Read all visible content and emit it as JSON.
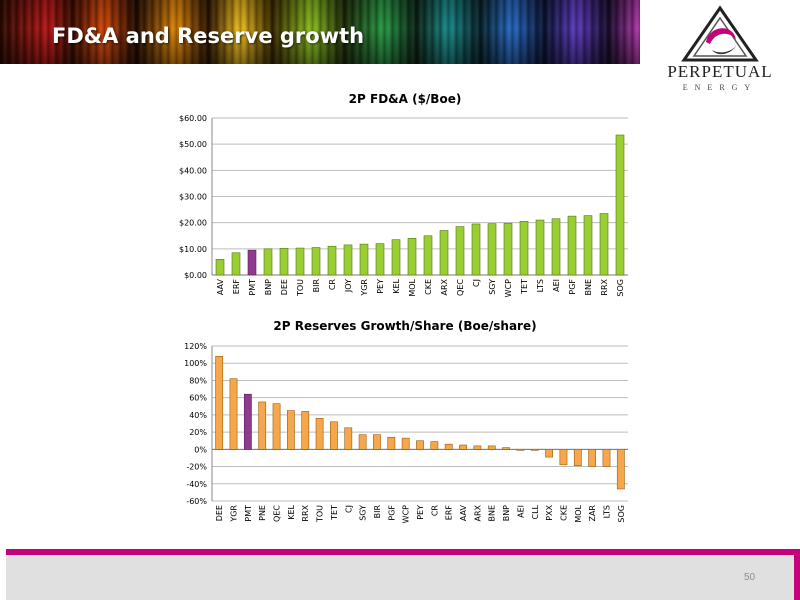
{
  "slide": {
    "title": "FD&A and Reserve growth",
    "page_number": "50"
  },
  "logo": {
    "name": "PERPETUAL",
    "sub": "ENERGY"
  },
  "colors": {
    "bar_default_1": "#9acd32",
    "bar_default_2": "#f7a74b",
    "bar_highlight": "#8e3a8e",
    "footer_accent": "#c4007a"
  },
  "chart_data": [
    {
      "type": "bar",
      "title": "2P FD&A ($/Boe)",
      "categories": [
        "AAV",
        "ERF",
        "PMT",
        "BNP",
        "DEE",
        "TOU",
        "BIR",
        "CR",
        "JOY",
        "YGR",
        "PEY",
        "KEL",
        "MOL",
        "CKE",
        "ARX",
        "QEC",
        "CJ",
        "SGY",
        "WCP",
        "TET",
        "LTS",
        "AEI",
        "PGF",
        "BNE",
        "RRX",
        "SOG"
      ],
      "values": [
        6.0,
        8.5,
        9.5,
        10.0,
        10.2,
        10.3,
        10.5,
        11.0,
        11.5,
        11.8,
        12.0,
        13.5,
        14.0,
        15.0,
        17.0,
        18.5,
        19.5,
        19.6,
        19.8,
        20.5,
        21.0,
        21.5,
        22.5,
        22.7,
        23.5,
        53.5
      ],
      "highlight": "PMT",
      "ylim": [
        0,
        60
      ],
      "yticks": [
        "$0.00",
        "$10.00",
        "$20.00",
        "$30.00",
        "$40.00",
        "$50.00",
        "$60.00"
      ],
      "grid": true
    },
    {
      "type": "bar",
      "title": "2P Reserves Growth/Share (Boe/share)",
      "categories": [
        "DEE",
        "YGR",
        "PMT",
        "PNE",
        "QEC",
        "KEL",
        "RRX",
        "TOU",
        "TET",
        "CJ",
        "SGY",
        "BIR",
        "PGF",
        "WCP",
        "PEY",
        "CR",
        "ERF",
        "AAV",
        "ARX",
        "BNE",
        "BNP",
        "AEI",
        "CLL",
        "PXX",
        "CKE",
        "MOL",
        "ZAR",
        "LTS",
        "SOG"
      ],
      "values": [
        108,
        82,
        64,
        55,
        53,
        45,
        44,
        36,
        32,
        25,
        17,
        17,
        14,
        13,
        10,
        9,
        6,
        5,
        4,
        4,
        2,
        -1,
        -1,
        -9,
        -18,
        -19,
        -20,
        -20,
        -46
      ],
      "highlight": "PMT",
      "ylim": [
        -60,
        120
      ],
      "yticks": [
        "-60%",
        "-40%",
        "-20%",
        "0%",
        "20%",
        "40%",
        "60%",
        "80%",
        "100%",
        "120%"
      ],
      "grid": true
    }
  ]
}
